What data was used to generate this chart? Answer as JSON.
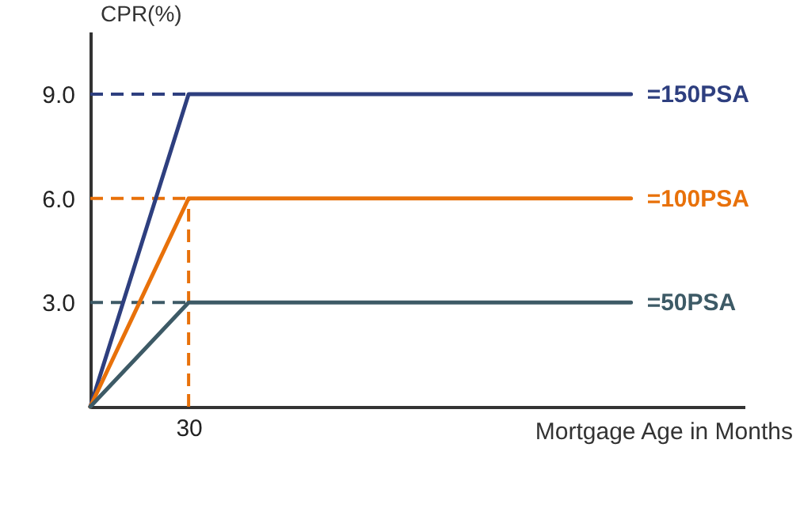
{
  "chart_data": {
    "type": "line",
    "xlabel": "Mortgage Age in Months",
    "ylabel": "CPR(%)",
    "categories": [
      null,
      null,
      "30",
      null,
      null,
      null,
      null,
      null,
      null,
      null,
      null,
      null
    ],
    "ylim": [
      0,
      10.8
    ],
    "yticks": [
      {
        "value": 3,
        "label": "3.0"
      },
      {
        "value": 6,
        "label": "6.0"
      },
      {
        "value": 9,
        "label": "9.0"
      }
    ],
    "grid": false,
    "series": [
      {
        "name": "=150PSA",
        "color": "#2e3f7f",
        "values": [
          0,
          4.5,
          9,
          9,
          9,
          9,
          9,
          9,
          9,
          9,
          9,
          9
        ]
      },
      {
        "name": "=100PSA",
        "color": "#e8710a",
        "values": [
          0,
          3,
          6,
          6,
          6,
          6,
          6,
          6,
          6,
          6,
          6,
          6
        ]
      },
      {
        "name": "=50PSA",
        "color": "#3d5a66",
        "values": [
          0,
          1.5,
          3,
          3,
          3,
          3,
          3,
          3,
          3,
          3,
          3,
          3
        ]
      }
    ],
    "ref_lines": [
      {
        "axis": "y",
        "value": 9,
        "color": "#2e3f7f",
        "line_style": "dashed"
      },
      {
        "axis": "y",
        "value": 6,
        "color": "#e8710a",
        "line_style": "dashed"
      },
      {
        "axis": "y",
        "value": 3,
        "color": "#3d5a66",
        "line_style": "dashed"
      },
      {
        "axis": "x",
        "value": "30",
        "color": "#e8710a",
        "line_style": "dashed"
      }
    ]
  }
}
